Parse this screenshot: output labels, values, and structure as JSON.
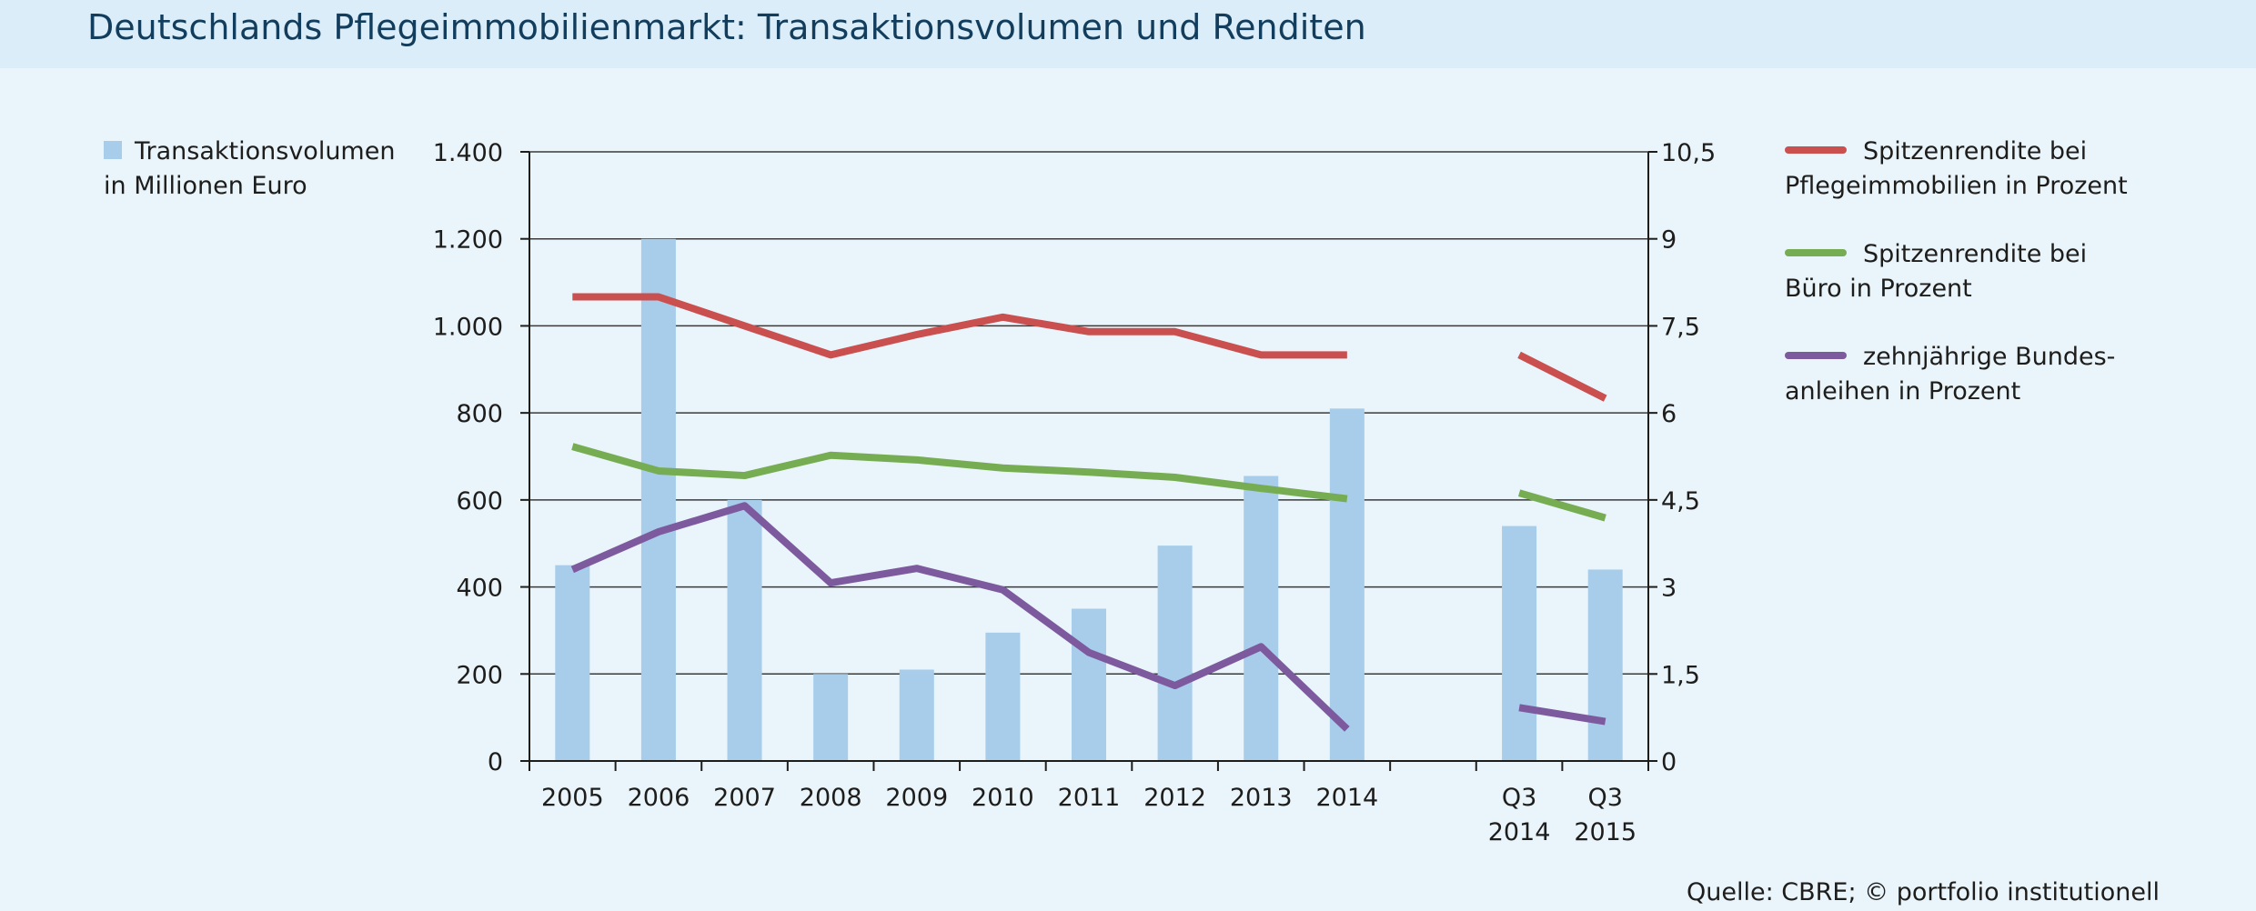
{
  "title": "Deutschlands Pflegeimmobilienmarkt: Transaktionsvolumen und Renditen",
  "source": "Quelle: CBRE; © portfolio institutionell",
  "chart_data": {
    "type": "bar+line",
    "categories": [
      [
        "2005"
      ],
      [
        "2006"
      ],
      [
        "2007"
      ],
      [
        "2008"
      ],
      [
        "2009"
      ],
      [
        "2010"
      ],
      [
        "2011"
      ],
      [
        "2012"
      ],
      [
        "2013"
      ],
      [
        "2014"
      ],
      [],
      [
        "Q3",
        "2014"
      ],
      [
        "Q3",
        "2015"
      ]
    ],
    "y_left": {
      "range": [
        0,
        1400
      ],
      "ticks": [
        0,
        200,
        400,
        600,
        800,
        1000,
        1200,
        1400
      ],
      "tick_labels": [
        "0",
        "200",
        "400",
        "600",
        "800",
        "1.000",
        "1.200",
        "1.400"
      ]
    },
    "y_right": {
      "range": [
        0,
        10.5
      ],
      "ticks": [
        0,
        1.5,
        3,
        4.5,
        6,
        7.5,
        9,
        10.5
      ],
      "tick_labels": [
        "0",
        "1,5",
        "3",
        "4,5",
        "6",
        "7,5",
        "9",
        "10,5"
      ]
    },
    "grid": true,
    "bars": {
      "name": "Transaktionsvolumen in Millionen Euro",
      "legend_lines": [
        "Transaktionsvolumen",
        "in Millionen Euro"
      ],
      "color": "#a7cdeb",
      "axis": "left",
      "values": [
        450,
        1200,
        600,
        200,
        210,
        295,
        350,
        495,
        655,
        810,
        null,
        540,
        440
      ]
    },
    "series": [
      {
        "name": "Spitzenrendite bei Pflegeimmobilien in Prozent",
        "legend_lines": [
          "Spitzenrendite bei",
          "Pflegeimmobilien in Prozent"
        ],
        "color": "#c9504f",
        "axis": "right",
        "segments": [
          {
            "indices": [
              0,
              1,
              2,
              3,
              4,
              5,
              6,
              7,
              8,
              9
            ],
            "values": [
              8.0,
              8.0,
              7.5,
              7.0,
              7.35,
              7.65,
              7.4,
              7.4,
              7.0,
              7.0
            ]
          },
          {
            "indices": [
              11,
              12
            ],
            "values": [
              7.0,
              6.25
            ]
          }
        ]
      },
      {
        "name": "Spitzenrendite bei Büro in Prozent",
        "legend_lines": [
          "Spitzenrendite bei",
          "Büro in Prozent"
        ],
        "color": "#76ad53",
        "axis": "right",
        "segments": [
          {
            "indices": [
              0,
              1,
              2,
              3,
              4,
              5,
              6,
              7,
              8,
              9
            ],
            "values": [
              5.42,
              5.0,
              4.92,
              5.27,
              5.19,
              5.05,
              4.98,
              4.89,
              4.7,
              4.52
            ]
          },
          {
            "indices": [
              11,
              12
            ],
            "values": [
              4.62,
              4.19
            ]
          }
        ]
      },
      {
        "name": "zehnjährige Bundesanleihen in Prozent",
        "legend_lines": [
          "zehnjährige Bundes-",
          "anleihen in Prozent"
        ],
        "color": "#7d5a9e",
        "axis": "right",
        "segments": [
          {
            "indices": [
              0,
              1,
              2,
              3,
              4,
              5,
              6,
              7,
              8,
              9
            ],
            "values": [
              3.3,
              3.95,
              4.4,
              3.07,
              3.32,
              2.95,
              1.87,
              1.3,
              1.97,
              0.55
            ]
          },
          {
            "indices": [
              11,
              12
            ],
            "values": [
              0.92,
              0.68
            ]
          }
        ]
      }
    ]
  }
}
